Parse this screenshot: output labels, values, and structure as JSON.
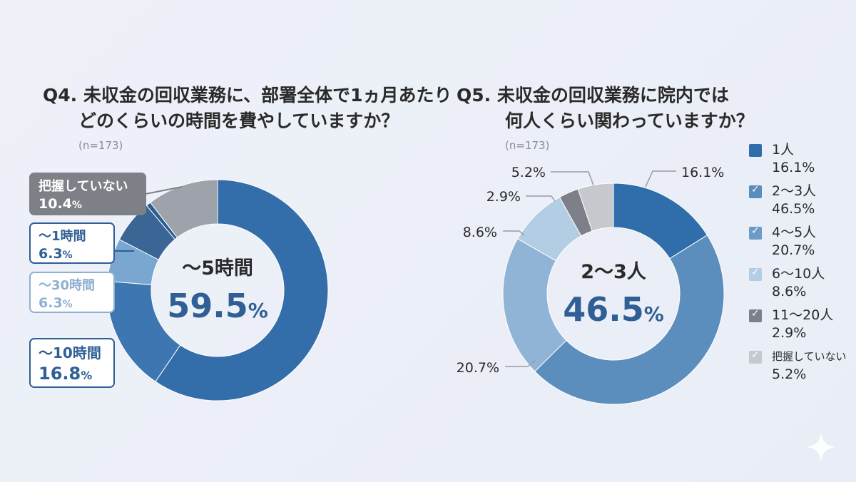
{
  "chart_data": [
    {
      "type": "pie",
      "title_line1": "Q4. 未収金の回収業務に、部署全体で1ヵ月あたり",
      "title_line2": "どのくらいの時間を費やしていますか？",
      "n_label": "(n=173)",
      "center_label": "〜5時間",
      "center_value": "59.5",
      "center_unit": "%",
      "slices": [
        {
          "label": "〜5時間",
          "value": 59.5,
          "color": "#336eaa"
        },
        {
          "label": "〜10時間",
          "value": 16.8,
          "color": "#3d76b0"
        },
        {
          "label": "〜30時間",
          "value": 6.3,
          "color": "#7aa7cf"
        },
        {
          "label": "〜1時間",
          "value": 6.3,
          "color": "#3a6595"
        },
        {
          "label": "",
          "value": 0.7,
          "color": "#2c5d93"
        },
        {
          "label": "把握していない",
          "value": 10.4,
          "color": "#9ea2aa"
        }
      ],
      "callouts": [
        {
          "label": "把握していない",
          "value": "10.4",
          "unit": "%"
        },
        {
          "label": "〜1時間",
          "value": "6.3",
          "unit": "%"
        },
        {
          "label": "〜30時間",
          "value": "6.3",
          "unit": "%"
        },
        {
          "label": "〜10時間",
          "value": "16.8",
          "unit": "%"
        }
      ]
    },
    {
      "type": "pie",
      "title_line1": "Q5. 未収金の回収業務に院内では",
      "title_line2": "何人くらい関わっていますか？",
      "n_label": "(n=173)",
      "center_label": "2〜3人",
      "center_value": "46.5",
      "center_unit": "%",
      "slices": [
        {
          "label": "1人",
          "value": 16.1,
          "color": "#2f6eaa"
        },
        {
          "label": "2〜3人",
          "value": 46.5,
          "color": "#5b8dbd"
        },
        {
          "label": "4〜5人",
          "value": 20.7,
          "color": "#8fb4d6"
        },
        {
          "label": "6〜10人",
          "value": 8.6,
          "color": "#b3cde4"
        },
        {
          "label": "11〜20人",
          "value": 2.9,
          "color": "#7d8088"
        },
        {
          "label": "把握していない",
          "value": 5.2,
          "color": "#c6c8cd"
        }
      ],
      "outer_labels": [
        "16.1%",
        "20.7%",
        "8.6%",
        "2.9%",
        "5.2%"
      ],
      "legend": [
        {
          "label": "1人",
          "value": "16.1%"
        },
        {
          "label": "2〜3人",
          "value": "46.5%"
        },
        {
          "label": "4〜5人",
          "value": "20.7%"
        },
        {
          "label": "6〜10人",
          "value": "8.6%"
        },
        {
          "label": "11〜20人",
          "value": "2.9%"
        },
        {
          "label": "把握していない",
          "value": "5.2%"
        }
      ]
    }
  ]
}
